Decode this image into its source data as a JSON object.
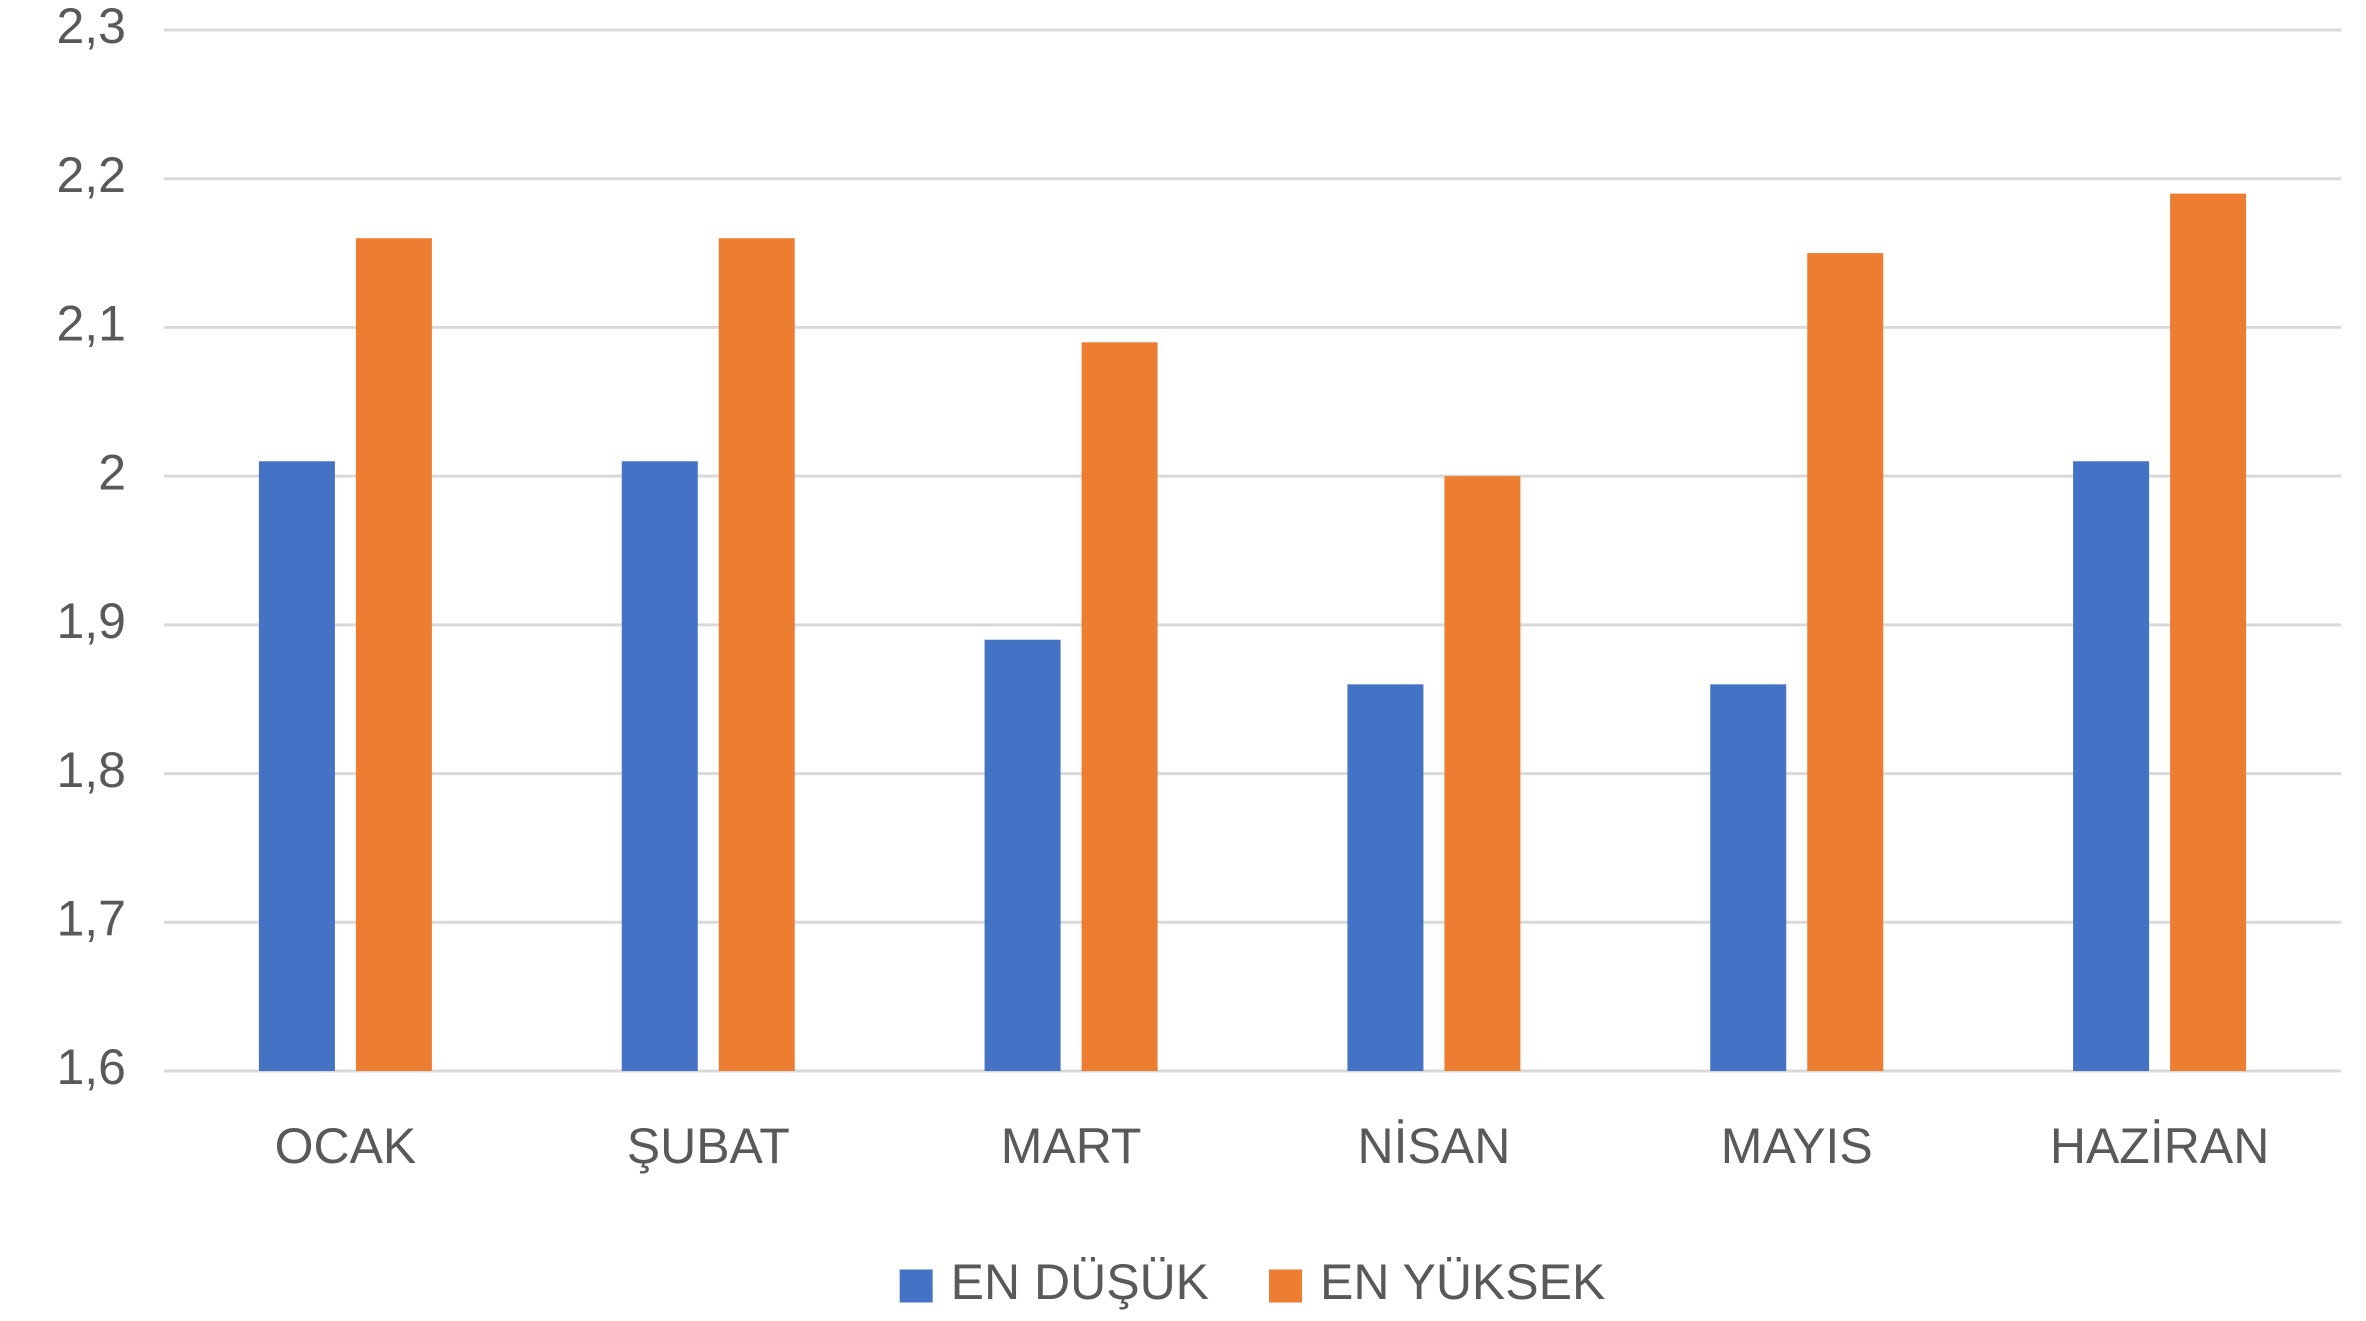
{
  "chart_data": {
    "type": "bar",
    "categories": [
      "OCAK",
      "ŞUBAT",
      "MART",
      "NİSAN",
      "MAYIS",
      "HAZİRAN"
    ],
    "series": [
      {
        "name": "EN DÜŞÜK",
        "color": "#4472c4",
        "values": [
          2.01,
          2.01,
          1.89,
          1.86,
          1.86,
          2.01
        ]
      },
      {
        "name": "EN YÜKSEK",
        "color": "#ed7d31",
        "values": [
          2.16,
          2.16,
          2.09,
          2.0,
          2.15,
          2.19
        ]
      }
    ],
    "ylim": [
      1.6,
      2.3
    ],
    "yticks": [
      {
        "value": 1.6,
        "label": "1,6"
      },
      {
        "value": 1.7,
        "label": "1,7"
      },
      {
        "value": 1.8,
        "label": "1,8"
      },
      {
        "value": 1.9,
        "label": "1,9"
      },
      2,
      {
        "value": 2.1,
        "label": "2,1"
      },
      {
        "value": 2.2,
        "label": "2,2"
      },
      {
        "value": 2.3,
        "label": "2,3"
      }
    ],
    "grid": true,
    "legend": "bottom"
  }
}
